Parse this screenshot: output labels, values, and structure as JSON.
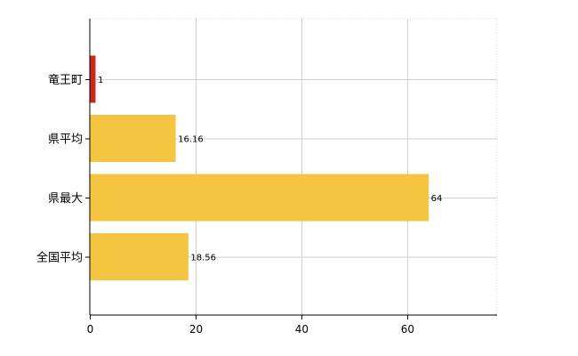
{
  "chart_data": {
    "type": "bar",
    "orientation": "horizontal",
    "categories": [
      "竜王町",
      "県平均",
      "県最大",
      "全国平均"
    ],
    "values": [
      1,
      16.16,
      64,
      18.56
    ],
    "value_labels": [
      "1",
      "16.16",
      "64",
      "18.56"
    ],
    "bar_colors": [
      "#c8291b",
      "#f5c542",
      "#f5c542",
      "#f5c542"
    ],
    "xticks": [
      0,
      20,
      40,
      60
    ],
    "xtick_labels": [
      "0",
      "20",
      "40",
      "60"
    ],
    "xlim": [
      0,
      77
    ],
    "grid": true
  },
  "colors": {
    "highlight": "#c8291b",
    "bar": "#f5c542",
    "grid": "#cfcfcf"
  }
}
